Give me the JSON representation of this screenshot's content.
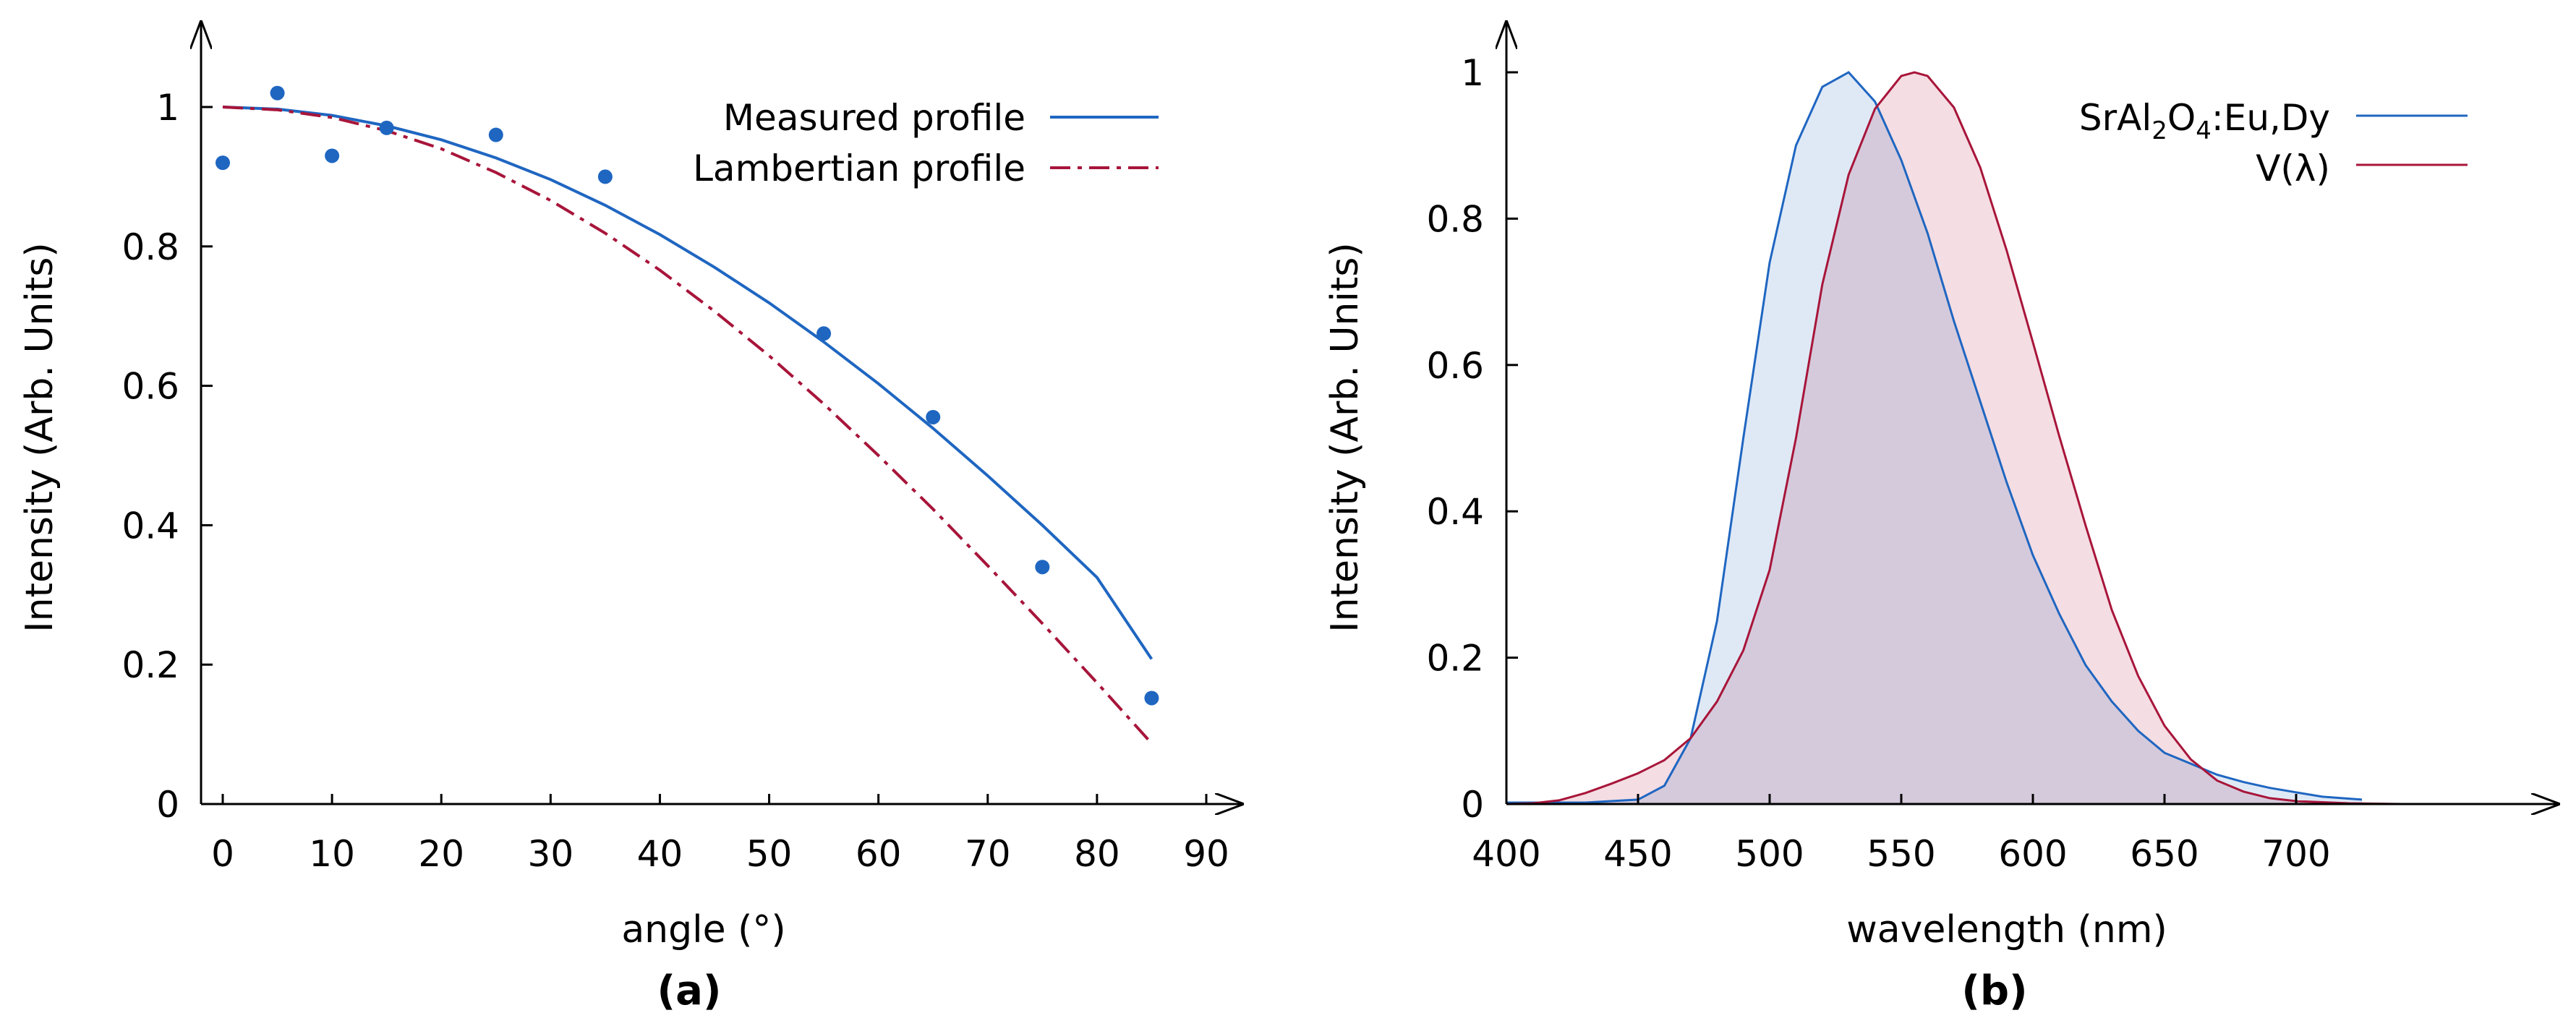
{
  "chart_data": [
    {
      "panel_label": "(a)",
      "type": "scatter",
      "xlabel": "angle (°)",
      "ylabel": "Intensity (Arb. Units)",
      "xlim": [
        -2,
        93
      ],
      "ylim": [
        0,
        1.1
      ],
      "xticks": [
        0,
        10,
        20,
        30,
        40,
        50,
        60,
        70,
        80,
        90
      ],
      "yticks": [
        0,
        0.2,
        0.4,
        0.6,
        0.8,
        1
      ],
      "grid": false,
      "legend_placement": "top-right",
      "points": {
        "x": [
          0,
          5,
          10,
          15,
          25,
          35,
          55,
          65,
          75,
          85
        ],
        "y": [
          0.92,
          1.02,
          0.93,
          0.97,
          0.96,
          0.9,
          0.675,
          0.555,
          0.34,
          0.152
        ]
      },
      "series": [
        {
          "name": "Measured profile",
          "style": "solid",
          "color": "#1f66c1",
          "x": [
            0,
            5,
            10,
            15,
            20,
            25,
            30,
            35,
            40,
            45,
            50,
            55,
            60,
            65,
            70,
            75,
            80,
            85
          ],
          "y": [
            1.0,
            0.997,
            0.988,
            0.973,
            0.953,
            0.927,
            0.896,
            0.859,
            0.817,
            0.77,
            0.719,
            0.663,
            0.603,
            0.539,
            0.471,
            0.4,
            0.325,
            0.208
          ]
        },
        {
          "name": "Lambertian profile",
          "style": "dash-dot",
          "color": "#a8153a",
          "x": [
            0,
            5,
            10,
            15,
            20,
            25,
            30,
            35,
            40,
            45,
            50,
            55,
            60,
            65,
            70,
            75,
            80,
            85
          ],
          "y": [
            1.0,
            0.996,
            0.985,
            0.966,
            0.94,
            0.906,
            0.866,
            0.819,
            0.766,
            0.707,
            0.643,
            0.574,
            0.5,
            0.423,
            0.342,
            0.259,
            0.174,
            0.087
          ]
        }
      ]
    },
    {
      "panel_label": "(b)",
      "type": "area",
      "xlabel": "wavelength (nm)",
      "ylabel": "Intensity (Arb. Units)",
      "xlim": [
        400,
        750
      ],
      "ylim": [
        0,
        1.05
      ],
      "xticks": [
        400,
        450,
        500,
        550,
        600,
        650,
        700
      ],
      "yticks": [
        0,
        0.2,
        0.4,
        0.6,
        0.8,
        1
      ],
      "grid": false,
      "legend_placement": "top-right",
      "series": [
        {
          "name_main": "SrAl",
          "name_sub1": "2",
          "name_mid": "O",
          "name_sub2": "4",
          "name_tail": ":Eu,Dy",
          "color": "#1f66c1",
          "fill": "#c9daf0",
          "x": [
            400,
            430,
            450,
            460,
            470,
            480,
            490,
            500,
            510,
            520,
            530,
            540,
            550,
            560,
            570,
            580,
            590,
            600,
            610,
            620,
            630,
            640,
            650,
            660,
            670,
            680,
            690,
            700,
            710,
            725
          ],
          "y": [
            0.002,
            0.002,
            0.006,
            0.025,
            0.09,
            0.25,
            0.5,
            0.74,
            0.9,
            0.98,
            1.0,
            0.96,
            0.88,
            0.78,
            0.66,
            0.55,
            0.44,
            0.34,
            0.26,
            0.19,
            0.14,
            0.1,
            0.07,
            0.055,
            0.04,
            0.03,
            0.022,
            0.016,
            0.01,
            0.006
          ]
        },
        {
          "name": "V(λ)",
          "color": "#a8153a",
          "fill": "#edc6d0",
          "x": [
            400,
            410,
            420,
            430,
            440,
            450,
            460,
            470,
            480,
            490,
            500,
            510,
            520,
            530,
            540,
            550,
            555,
            560,
            570,
            580,
            590,
            600,
            610,
            620,
            630,
            640,
            650,
            660,
            670,
            680,
            690,
            700,
            720,
            740
          ],
          "y": [
            0.0,
            0.001,
            0.005,
            0.015,
            0.028,
            0.042,
            0.06,
            0.09,
            0.14,
            0.21,
            0.32,
            0.5,
            0.71,
            0.86,
            0.95,
            0.995,
            1.0,
            0.995,
            0.952,
            0.87,
            0.757,
            0.631,
            0.503,
            0.381,
            0.265,
            0.175,
            0.107,
            0.061,
            0.032,
            0.017,
            0.008,
            0.004,
            0.001,
            0.0
          ]
        }
      ]
    }
  ]
}
